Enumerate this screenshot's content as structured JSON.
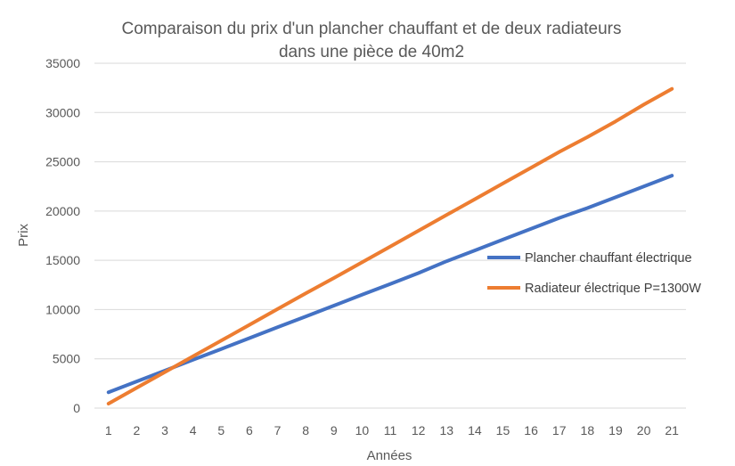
{
  "chart_data": {
    "type": "line",
    "title_lines": [
      "Comparaison du prix d'un plancher chauffant et de deux radiateurs",
      "dans une pièce de 40m2"
    ],
    "xlabel": "Années",
    "ylabel": "Prix",
    "ylim": [
      0,
      35000
    ],
    "yticks": [
      0,
      5000,
      10000,
      15000,
      20000,
      25000,
      30000,
      35000
    ],
    "grid": true,
    "legend_position": "right",
    "categories": [
      "1",
      "2",
      "3",
      "4",
      "5",
      "6",
      "7",
      "8",
      "9",
      "10",
      "11",
      "12",
      "13",
      "14",
      "15",
      "16",
      "17",
      "18",
      "19",
      "20",
      "21"
    ],
    "series": [
      {
        "name": "Plancher chauffant électrique",
        "color": "#4472c4",
        "values": [
          1600,
          2700,
          3800,
          4900,
          6000,
          7100,
          8200,
          9300,
          10400,
          11500,
          12600,
          13700,
          14900,
          16000,
          17100,
          18200,
          19300,
          20300,
          21400,
          22500,
          23600
        ]
      },
      {
        "name": "Radiateur électrique P=1300W",
        "color": "#ed7d31",
        "values": [
          450,
          2050,
          3650,
          5250,
          6850,
          8450,
          10050,
          11650,
          13200,
          14800,
          16400,
          18000,
          19600,
          21200,
          22800,
          24400,
          26000,
          27500,
          29100,
          30800,
          32400
        ]
      }
    ]
  }
}
